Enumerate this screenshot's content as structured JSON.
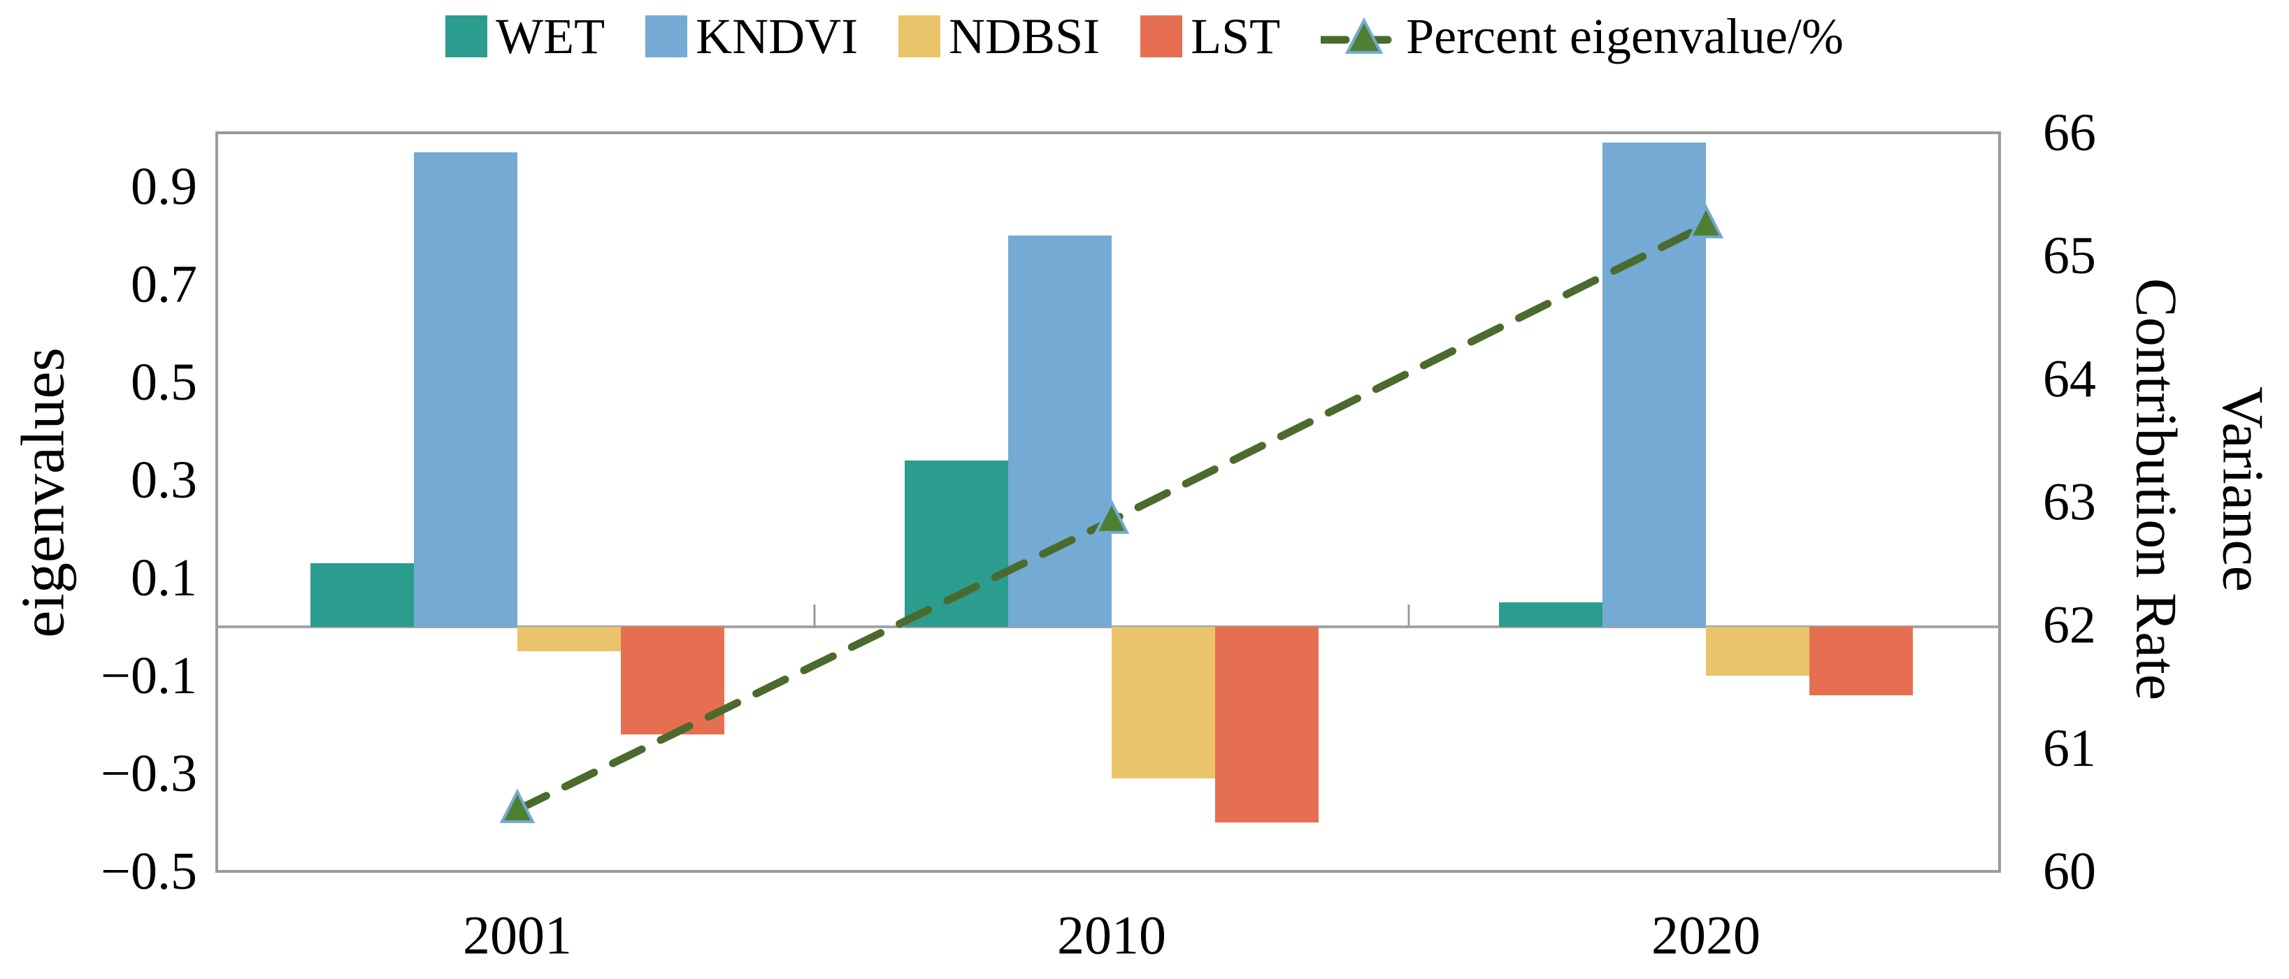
{
  "figure": {
    "background": "#ffffff"
  },
  "legend": {
    "position": "top-center",
    "items": [
      {
        "label": "WET",
        "type": "swatch",
        "color": "#2a9d8f"
      },
      {
        "label": "KNDVI",
        "type": "swatch",
        "color": "#74aad3"
      },
      {
        "label": "NDBSI",
        "type": "swatch",
        "color": "#e9c46a"
      },
      {
        "label": "LST",
        "type": "swatch",
        "color": "#e76f51"
      },
      {
        "label": "Percent eigenvalue/%",
        "type": "line-marker",
        "line_color": "#4a6b2d",
        "marker_fill": "#4e8033",
        "marker_edge": "#74aad3"
      }
    ]
  },
  "chart_data": {
    "type": "bar+line",
    "categories": [
      "2001",
      "2010",
      "2020"
    ],
    "series": [
      {
        "name": "WET",
        "type": "bar",
        "axis": "left",
        "color": "#2a9d8f",
        "values": [
          0.13,
          0.34,
          0.05
        ]
      },
      {
        "name": "KNDVI",
        "type": "bar",
        "axis": "left",
        "color": "#74aad3",
        "values": [
          0.97,
          0.8,
          0.99
        ]
      },
      {
        "name": "NDBSI",
        "type": "bar",
        "axis": "left",
        "color": "#e9c46a",
        "values": [
          -0.05,
          -0.31,
          -0.1
        ]
      },
      {
        "name": "LST",
        "type": "bar",
        "axis": "left",
        "color": "#e76f51",
        "values": [
          -0.22,
          -0.4,
          -0.14
        ]
      },
      {
        "name": "Percent eigenvalue/%",
        "type": "line",
        "axis": "right",
        "color": "#4a6b2d",
        "marker": "triangle-up",
        "marker_fill": "#4e8033",
        "marker_edge": "#74aad3",
        "values": [
          60.5,
          62.85,
          65.25
        ]
      }
    ],
    "left_axis": {
      "label": "eigenvalues",
      "range": [
        -0.5,
        1.01
      ],
      "ticks": [
        {
          "v": 0.9,
          "label": "0.9"
        },
        {
          "v": 0.7,
          "label": "0.7"
        },
        {
          "v": 0.5,
          "label": "0.5"
        },
        {
          "v": 0.3,
          "label": "0.3"
        },
        {
          "v": 0.1,
          "label": "0.1"
        },
        {
          "v": -0.1,
          "label": "−0.1"
        },
        {
          "v": -0.3,
          "label": "−0.3"
        },
        {
          "v": -0.5,
          "label": "−0.5"
        }
      ]
    },
    "right_axis": {
      "label_lines": [
        "Variance",
        "Contribution Rate"
      ],
      "range": [
        60,
        66
      ],
      "ticks": [
        {
          "v": 66,
          "label": "66"
        },
        {
          "v": 65,
          "label": "65"
        },
        {
          "v": 64,
          "label": "64"
        },
        {
          "v": 63,
          "label": "63"
        },
        {
          "v": 62,
          "label": "62"
        },
        {
          "v": 61,
          "label": "61"
        },
        {
          "v": 60,
          "label": "60"
        }
      ]
    },
    "x_axis": {
      "tick_labels": [
        "2001",
        "2010",
        "2020"
      ]
    },
    "style": {
      "border_color": "#9a9a9a",
      "zero_line_color": "#a3a3a3",
      "grid": "off",
      "legend_position": "top"
    }
  }
}
